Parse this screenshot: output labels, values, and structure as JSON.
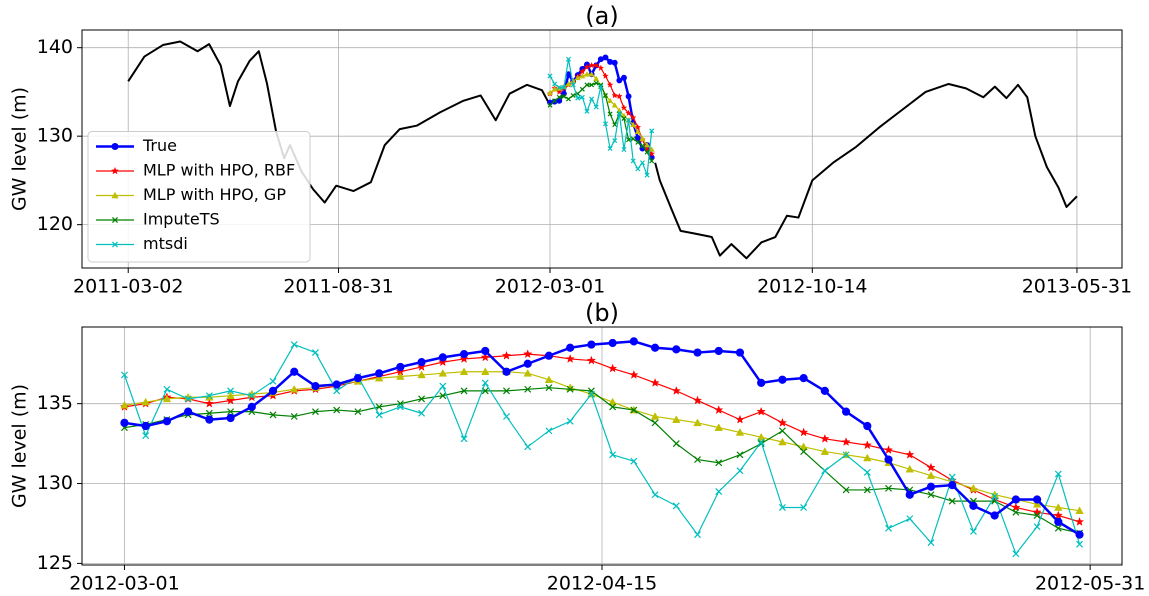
{
  "chart_data": [
    {
      "type": "line",
      "title": "(a)",
      "y_label": "GW level (m)",
      "xlim": [
        "2011-01-21",
        "2013-07-09"
      ],
      "ylim": [
        115.1,
        142.0
      ],
      "xticks": [
        "2011-03-02",
        "2011-08-31",
        "2012-03-01",
        "2012-10-14",
        "2013-05-31"
      ],
      "yticks": [
        120,
        130,
        140
      ],
      "grid": true,
      "legend": "lower left",
      "x": [
        "2012-03-01",
        "2012-03-05",
        "2012-03-09",
        "2012-03-13",
        "2012-03-17",
        "2012-03-21",
        "2012-03-25",
        "2012-03-29",
        "2012-04-02",
        "2012-04-06",
        "2012-04-10",
        "2012-04-14",
        "2012-04-18",
        "2012-04-22",
        "2012-04-26",
        "2012-04-30",
        "2012-05-04",
        "2012-05-08",
        "2012-05-12",
        "2012-05-16",
        "2012-05-20",
        "2012-05-24",
        "2012-05-28"
      ],
      "series": [
        {
          "color": "#000000",
          "x": [
            "2011-03-02",
            "2011-03-16",
            "2011-04-01",
            "2011-04-16",
            "2011-05-01",
            "2011-05-11",
            "2011-05-21",
            "2011-05-29",
            "2011-06-05",
            "2011-06-15",
            "2011-06-23",
            "2011-06-30",
            "2011-07-08",
            "2011-07-15",
            "2011-07-20",
            "2011-07-30",
            "2011-08-09",
            "2011-08-19",
            "2011-08-29",
            "2011-09-13",
            "2011-09-28",
            "2011-10-10",
            "2011-10-23",
            "2011-11-07",
            "2011-11-27",
            "2011-12-17",
            "2012-01-01",
            "2012-01-14",
            "2012-01-26",
            "2012-02-10",
            "2012-02-23",
            "2012-03-01",
            "2012-04-15",
            "2012-05-31",
            "2012-06-04",
            "2012-06-14",
            "2012-06-22",
            "2012-07-04",
            "2012-07-19",
            "2012-07-26",
            "2012-08-05",
            "2012-08-18",
            "2012-08-31",
            "2012-09-12",
            "2012-09-22",
            "2012-10-02",
            "2012-10-14",
            "2012-11-01",
            "2012-11-21",
            "2012-12-11",
            "2012-12-31",
            "2013-01-20",
            "2013-02-09",
            "2013-02-24",
            "2013-03-11",
            "2013-03-21",
            "2013-03-31",
            "2013-04-10",
            "2013-04-18",
            "2013-04-25",
            "2013-05-05",
            "2013-05-15",
            "2013-05-22",
            "2013-05-31"
          ],
          "values": [
            136.2,
            139.0,
            140.3,
            140.7,
            139.6,
            140.4,
            138.0,
            133.4,
            136.2,
            138.5,
            139.6,
            136.0,
            130.5,
            127.5,
            129.0,
            126.0,
            124.0,
            122.5,
            124.4,
            123.8,
            124.8,
            129.0,
            130.8,
            131.2,
            132.7,
            134.0,
            134.6,
            131.8,
            134.8,
            135.8,
            135.2,
            133.5,
            null,
            127.0,
            125.0,
            121.8,
            119.3,
            119.0,
            118.6,
            116.5,
            117.8,
            116.2,
            118.0,
            118.6,
            121.0,
            120.8,
            125.0,
            127.0,
            128.8,
            131.0,
            133.0,
            135.0,
            135.9,
            135.4,
            134.4,
            135.6,
            134.3,
            135.8,
            134.4,
            130.0,
            126.5,
            124.2,
            122.0,
            123.2
          ]
        },
        {
          "name": "True",
          "color": "#0000ff",
          "marker": "o",
          "values": [
            133.8,
            133.9,
            134.0,
            134.8,
            137.0,
            136.2,
            136.9,
            137.6,
            138.1,
            137.0,
            138.0,
            138.7,
            138.9,
            138.4,
            138.3,
            136.3,
            136.6,
            134.5,
            131.5,
            129.8,
            128.6,
            129.0,
            127.6
          ]
        },
        {
          "name": "MLP with HPO, RBF",
          "color": "#ff0000",
          "marker": "*",
          "values": [
            134.8,
            135.4,
            135.0,
            135.4,
            135.8,
            136.1,
            136.7,
            137.3,
            137.8,
            138.0,
            138.0,
            137.7,
            136.8,
            135.8,
            134.6,
            134.5,
            133.2,
            132.6,
            132.1,
            131.0,
            129.6,
            128.5,
            128.0
          ]
        },
        {
          "name": "MLP with HPO, GP",
          "color": "#bfbf00",
          "marker": "^",
          "values": [
            134.9,
            135.3,
            135.4,
            135.6,
            135.9,
            136.2,
            136.6,
            136.8,
            137.0,
            137.0,
            136.5,
            135.6,
            134.6,
            134.0,
            133.5,
            132.9,
            132.3,
            131.8,
            131.3,
            130.5,
            129.7,
            129.0,
            128.5
          ]
        },
        {
          "name": "ImputeTS",
          "color": "#008000",
          "marker": "x",
          "values": [
            133.5,
            134.0,
            134.4,
            134.5,
            134.2,
            134.6,
            134.8,
            135.3,
            135.8,
            135.8,
            136.0,
            135.8,
            134.6,
            132.5,
            131.3,
            132.5,
            132.0,
            129.6,
            129.7,
            129.3,
            128.9,
            128.2,
            127.2
          ]
        },
        {
          "name": "mtsdi",
          "color": "#00bfbf",
          "marker": "x",
          "values": [
            136.8,
            135.9,
            135.5,
            135.5,
            138.7,
            135.8,
            134.3,
            134.4,
            132.8,
            134.2,
            133.3,
            135.6,
            131.4,
            128.6,
            129.5,
            132.6,
            128.5,
            131.8,
            127.2,
            126.3,
            127.0,
            125.6,
            130.6
          ]
        }
      ]
    },
    {
      "type": "line",
      "title": "(b)",
      "y_label": "GW level (m)",
      "xlim": [
        "2012-02-26",
        "2012-06-03"
      ],
      "ylim": [
        124.9,
        139.8
      ],
      "xticks": [
        "2012-03-01",
        "2012-04-15",
        "2012-05-31"
      ],
      "yticks": [
        125,
        130,
        135
      ],
      "grid": true,
      "x": [
        "2012-03-01",
        "2012-03-03",
        "2012-03-05",
        "2012-03-07",
        "2012-03-09",
        "2012-03-11",
        "2012-03-13",
        "2012-03-15",
        "2012-03-17",
        "2012-03-19",
        "2012-03-21",
        "2012-03-23",
        "2012-03-25",
        "2012-03-27",
        "2012-03-29",
        "2012-03-31",
        "2012-04-02",
        "2012-04-04",
        "2012-04-06",
        "2012-04-08",
        "2012-04-10",
        "2012-04-12",
        "2012-04-14",
        "2012-04-16",
        "2012-04-18",
        "2012-04-20",
        "2012-04-22",
        "2012-04-24",
        "2012-04-26",
        "2012-04-28",
        "2012-04-30",
        "2012-05-02",
        "2012-05-04",
        "2012-05-06",
        "2012-05-08",
        "2012-05-10",
        "2012-05-12",
        "2012-05-14",
        "2012-05-16",
        "2012-05-18",
        "2012-05-20",
        "2012-05-22",
        "2012-05-24",
        "2012-05-26",
        "2012-05-28",
        "2012-05-30"
      ],
      "series": [
        {
          "name": "MLP with HPO, RBF",
          "color": "#ff0000",
          "marker": "*",
          "values": [
            134.8,
            135.0,
            135.4,
            135.3,
            135.0,
            135.2,
            135.4,
            135.5,
            135.8,
            135.9,
            136.1,
            136.4,
            136.7,
            137.0,
            137.3,
            137.6,
            137.8,
            137.9,
            138.0,
            138.1,
            138.0,
            137.8,
            137.7,
            137.2,
            136.8,
            136.3,
            135.8,
            135.2,
            134.6,
            134.0,
            134.5,
            133.8,
            133.2,
            132.8,
            132.6,
            132.4,
            132.1,
            131.8,
            131.0,
            130.2,
            129.6,
            129.0,
            128.5,
            128.2,
            128.0,
            127.6
          ]
        },
        {
          "name": "MLP with HPO, GP",
          "color": "#bfbf00",
          "marker": "^",
          "values": [
            134.9,
            135.1,
            135.3,
            135.4,
            135.4,
            135.5,
            135.6,
            135.7,
            135.9,
            136.0,
            136.2,
            136.4,
            136.6,
            136.7,
            136.8,
            136.9,
            137.0,
            137.0,
            137.0,
            136.9,
            136.5,
            136.0,
            135.6,
            135.1,
            134.6,
            134.2,
            134.0,
            133.8,
            133.5,
            133.2,
            132.9,
            132.6,
            132.3,
            132.0,
            131.8,
            131.6,
            131.3,
            130.9,
            130.5,
            130.1,
            129.7,
            129.3,
            129.0,
            128.7,
            128.5,
            128.3
          ]
        },
        {
          "name": "ImputeTS",
          "color": "#008000",
          "marker": "x",
          "values": [
            133.5,
            133.7,
            134.0,
            134.3,
            134.4,
            134.5,
            134.5,
            134.3,
            134.2,
            134.5,
            134.6,
            134.5,
            134.8,
            135.0,
            135.3,
            135.5,
            135.8,
            135.8,
            135.8,
            135.9,
            136.0,
            135.9,
            135.8,
            134.8,
            134.6,
            133.8,
            132.5,
            131.5,
            131.3,
            131.8,
            132.5,
            133.3,
            132.0,
            130.8,
            129.6,
            129.6,
            129.7,
            129.6,
            129.3,
            128.9,
            128.9,
            128.9,
            128.2,
            128.0,
            127.2,
            126.9
          ]
        },
        {
          "name": "mtsdi",
          "color": "#00bfbf",
          "marker": "x",
          "values": [
            136.8,
            133.0,
            135.9,
            135.3,
            135.5,
            135.8,
            135.5,
            136.4,
            138.7,
            138.2,
            135.8,
            136.7,
            134.3,
            134.8,
            134.4,
            136.1,
            132.8,
            136.3,
            134.2,
            132.3,
            133.3,
            133.9,
            135.6,
            131.8,
            131.4,
            129.3,
            128.6,
            126.8,
            129.5,
            130.8,
            132.6,
            128.5,
            128.5,
            130.8,
            131.8,
            130.7,
            127.2,
            127.8,
            126.3,
            130.4,
            127.0,
            129.2,
            125.6,
            127.3,
            130.6,
            126.2
          ]
        },
        {
          "name": "True",
          "color": "#0000ff",
          "marker": "o",
          "values": [
            133.8,
            133.6,
            133.9,
            134.5,
            134.0,
            134.1,
            134.8,
            135.8,
            137.0,
            136.1,
            136.2,
            136.6,
            136.9,
            137.3,
            137.6,
            137.9,
            138.1,
            138.3,
            137.0,
            137.5,
            138.0,
            138.5,
            138.7,
            138.8,
            138.9,
            138.5,
            138.4,
            138.2,
            138.3,
            138.2,
            136.3,
            136.5,
            136.6,
            135.8,
            134.5,
            133.6,
            131.5,
            129.3,
            129.8,
            129.9,
            128.6,
            128.0,
            129.0,
            129.0,
            127.6,
            126.8
          ]
        }
      ]
    }
  ]
}
